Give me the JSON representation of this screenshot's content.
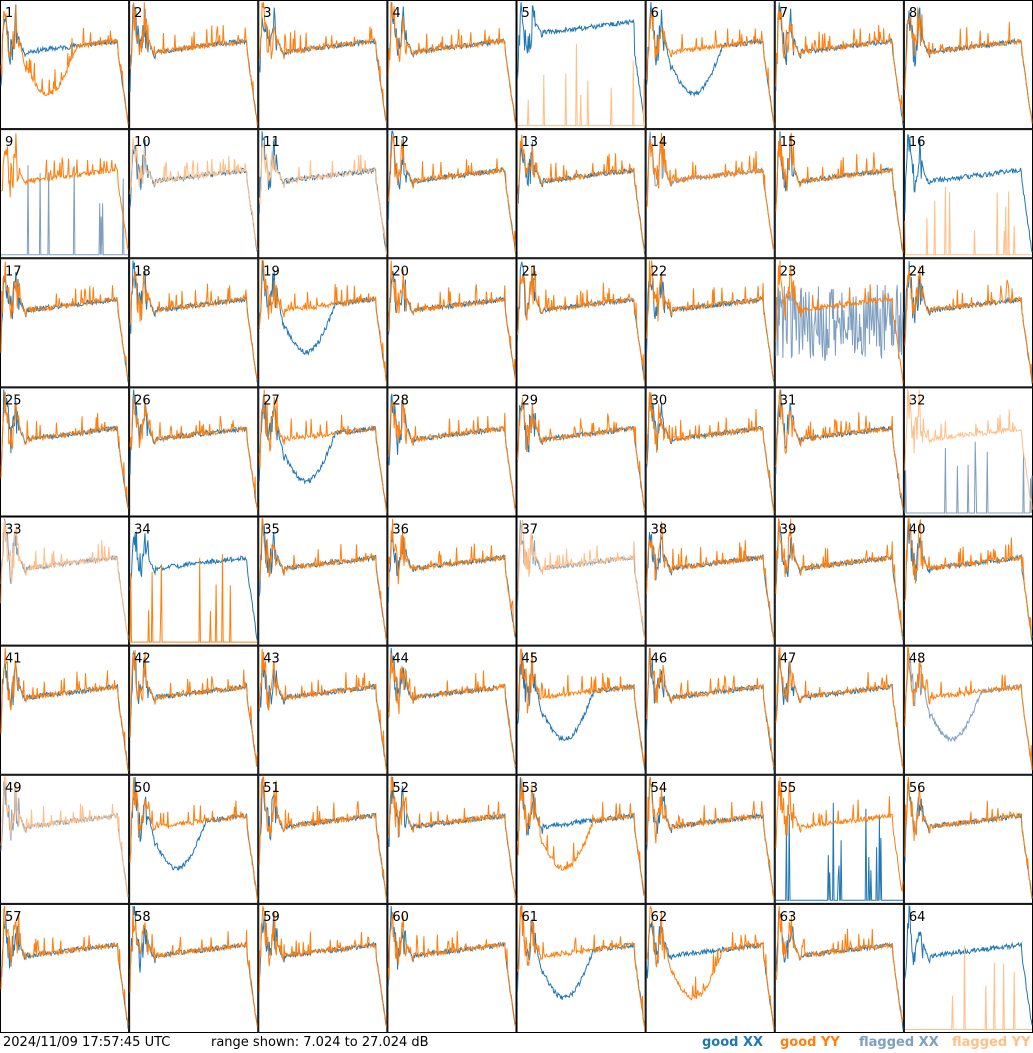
{
  "footer": {
    "timestamp": "2024/11/09 17:57:45 UTC",
    "range_text": "range shown: 7.024 to 27.024 dB"
  },
  "legend": [
    {
      "label": "good XX",
      "color": "#1f77b4"
    },
    {
      "label": "good YY",
      "color": "#ff7f0e"
    },
    {
      "label": "flagged XX",
      "color": "#7f9fbf"
    },
    {
      "label": "flagged YY",
      "color": "#ffbf87"
    }
  ],
  "chart_data": {
    "type": "line",
    "layout": "small-multiples 8x8",
    "ylim": [
      7.024,
      27.024
    ],
    "yunit": "dB",
    "series_legend": [
      "good XX",
      "good YY",
      "flagged XX",
      "flagged YY"
    ],
    "panels": [
      {
        "id": "1",
        "xx": "good",
        "yy": "good",
        "shape_xx": "typical",
        "shape_yy": "dip"
      },
      {
        "id": "2",
        "xx": "good",
        "yy": "good"
      },
      {
        "id": "3",
        "xx": "good",
        "yy": "good"
      },
      {
        "id": "4",
        "xx": "good",
        "yy": "good"
      },
      {
        "id": "5",
        "xx": "good",
        "yy": "flagged",
        "shape_xx": "high",
        "shape_yy": "zero"
      },
      {
        "id": "6",
        "xx": "good",
        "yy": "good",
        "shape_xx": "dip"
      },
      {
        "id": "7",
        "xx": "good",
        "yy": "good"
      },
      {
        "id": "8",
        "xx": "good",
        "yy": "good"
      },
      {
        "id": "9",
        "xx": "flagged",
        "yy": "good",
        "shape_xx": "zero"
      },
      {
        "id": "10",
        "xx": "good",
        "yy": "flagged"
      },
      {
        "id": "11",
        "xx": "good",
        "yy": "flagged"
      },
      {
        "id": "12",
        "xx": "good",
        "yy": "good"
      },
      {
        "id": "13",
        "xx": "good",
        "yy": "good"
      },
      {
        "id": "14",
        "xx": "flagged",
        "yy": "good"
      },
      {
        "id": "15",
        "xx": "good",
        "yy": "good"
      },
      {
        "id": "16",
        "xx": "good",
        "yy": "flagged",
        "shape_yy": "zero"
      },
      {
        "id": "17",
        "xx": "good",
        "yy": "good"
      },
      {
        "id": "18",
        "xx": "good",
        "yy": "good"
      },
      {
        "id": "19",
        "xx": "good",
        "yy": "good",
        "shape_xx": "dip"
      },
      {
        "id": "20",
        "xx": "good",
        "yy": "good"
      },
      {
        "id": "21",
        "xx": "good",
        "yy": "good"
      },
      {
        "id": "22",
        "xx": "good",
        "yy": "good"
      },
      {
        "id": "23",
        "xx": "flagged",
        "yy": "good",
        "shape_xx": "noisy"
      },
      {
        "id": "24",
        "xx": "good",
        "yy": "good"
      },
      {
        "id": "25",
        "xx": "good",
        "yy": "good"
      },
      {
        "id": "26",
        "xx": "good",
        "yy": "good"
      },
      {
        "id": "27",
        "xx": "good",
        "yy": "good",
        "shape_xx": "dip"
      },
      {
        "id": "28",
        "xx": "good",
        "yy": "good"
      },
      {
        "id": "29",
        "xx": "good",
        "yy": "good"
      },
      {
        "id": "30",
        "xx": "good",
        "yy": "good"
      },
      {
        "id": "31",
        "xx": "good",
        "yy": "good"
      },
      {
        "id": "32",
        "xx": "flagged",
        "yy": "flagged",
        "shape_xx": "zero"
      },
      {
        "id": "33",
        "xx": "flagged",
        "yy": "flagged"
      },
      {
        "id": "34",
        "xx": "good",
        "yy": "good",
        "shape_yy": "zero"
      },
      {
        "id": "35",
        "xx": "good",
        "yy": "good"
      },
      {
        "id": "36",
        "xx": "good",
        "yy": "good"
      },
      {
        "id": "37",
        "xx": "flagged",
        "yy": "flagged"
      },
      {
        "id": "38",
        "xx": "good",
        "yy": "good"
      },
      {
        "id": "39",
        "xx": "good",
        "yy": "good"
      },
      {
        "id": "40",
        "xx": "good",
        "yy": "good"
      },
      {
        "id": "41",
        "xx": "good",
        "yy": "good"
      },
      {
        "id": "42",
        "xx": "good",
        "yy": "good"
      },
      {
        "id": "43",
        "xx": "good",
        "yy": "good"
      },
      {
        "id": "44",
        "xx": "good",
        "yy": "good"
      },
      {
        "id": "45",
        "xx": "good",
        "yy": "good",
        "shape_xx": "dip"
      },
      {
        "id": "46",
        "xx": "good",
        "yy": "good"
      },
      {
        "id": "47",
        "xx": "good",
        "yy": "good"
      },
      {
        "id": "48",
        "xx": "flagged",
        "yy": "good",
        "shape_xx": "dip"
      },
      {
        "id": "49",
        "xx": "flagged",
        "yy": "flagged"
      },
      {
        "id": "50",
        "xx": "good",
        "yy": "good",
        "shape_xx": "dip"
      },
      {
        "id": "51",
        "xx": "good",
        "yy": "good"
      },
      {
        "id": "52",
        "xx": "good",
        "yy": "good"
      },
      {
        "id": "53",
        "xx": "good",
        "yy": "good",
        "shape_yy": "dip"
      },
      {
        "id": "54",
        "xx": "good",
        "yy": "good"
      },
      {
        "id": "55",
        "xx": "good",
        "yy": "good",
        "shape_xx": "zero"
      },
      {
        "id": "56",
        "xx": "good",
        "yy": "good"
      },
      {
        "id": "57",
        "xx": "good",
        "yy": "good"
      },
      {
        "id": "58",
        "xx": "good",
        "yy": "good"
      },
      {
        "id": "59",
        "xx": "good",
        "yy": "good"
      },
      {
        "id": "60",
        "xx": "good",
        "yy": "good"
      },
      {
        "id": "61",
        "xx": "good",
        "yy": "good",
        "shape_xx": "dip"
      },
      {
        "id": "62",
        "xx": "good",
        "yy": "good",
        "shape_yy": "dip"
      },
      {
        "id": "63",
        "xx": "good",
        "yy": "good"
      },
      {
        "id": "64",
        "xx": "good",
        "yy": "flagged",
        "shape_yy": "zero"
      }
    ]
  }
}
